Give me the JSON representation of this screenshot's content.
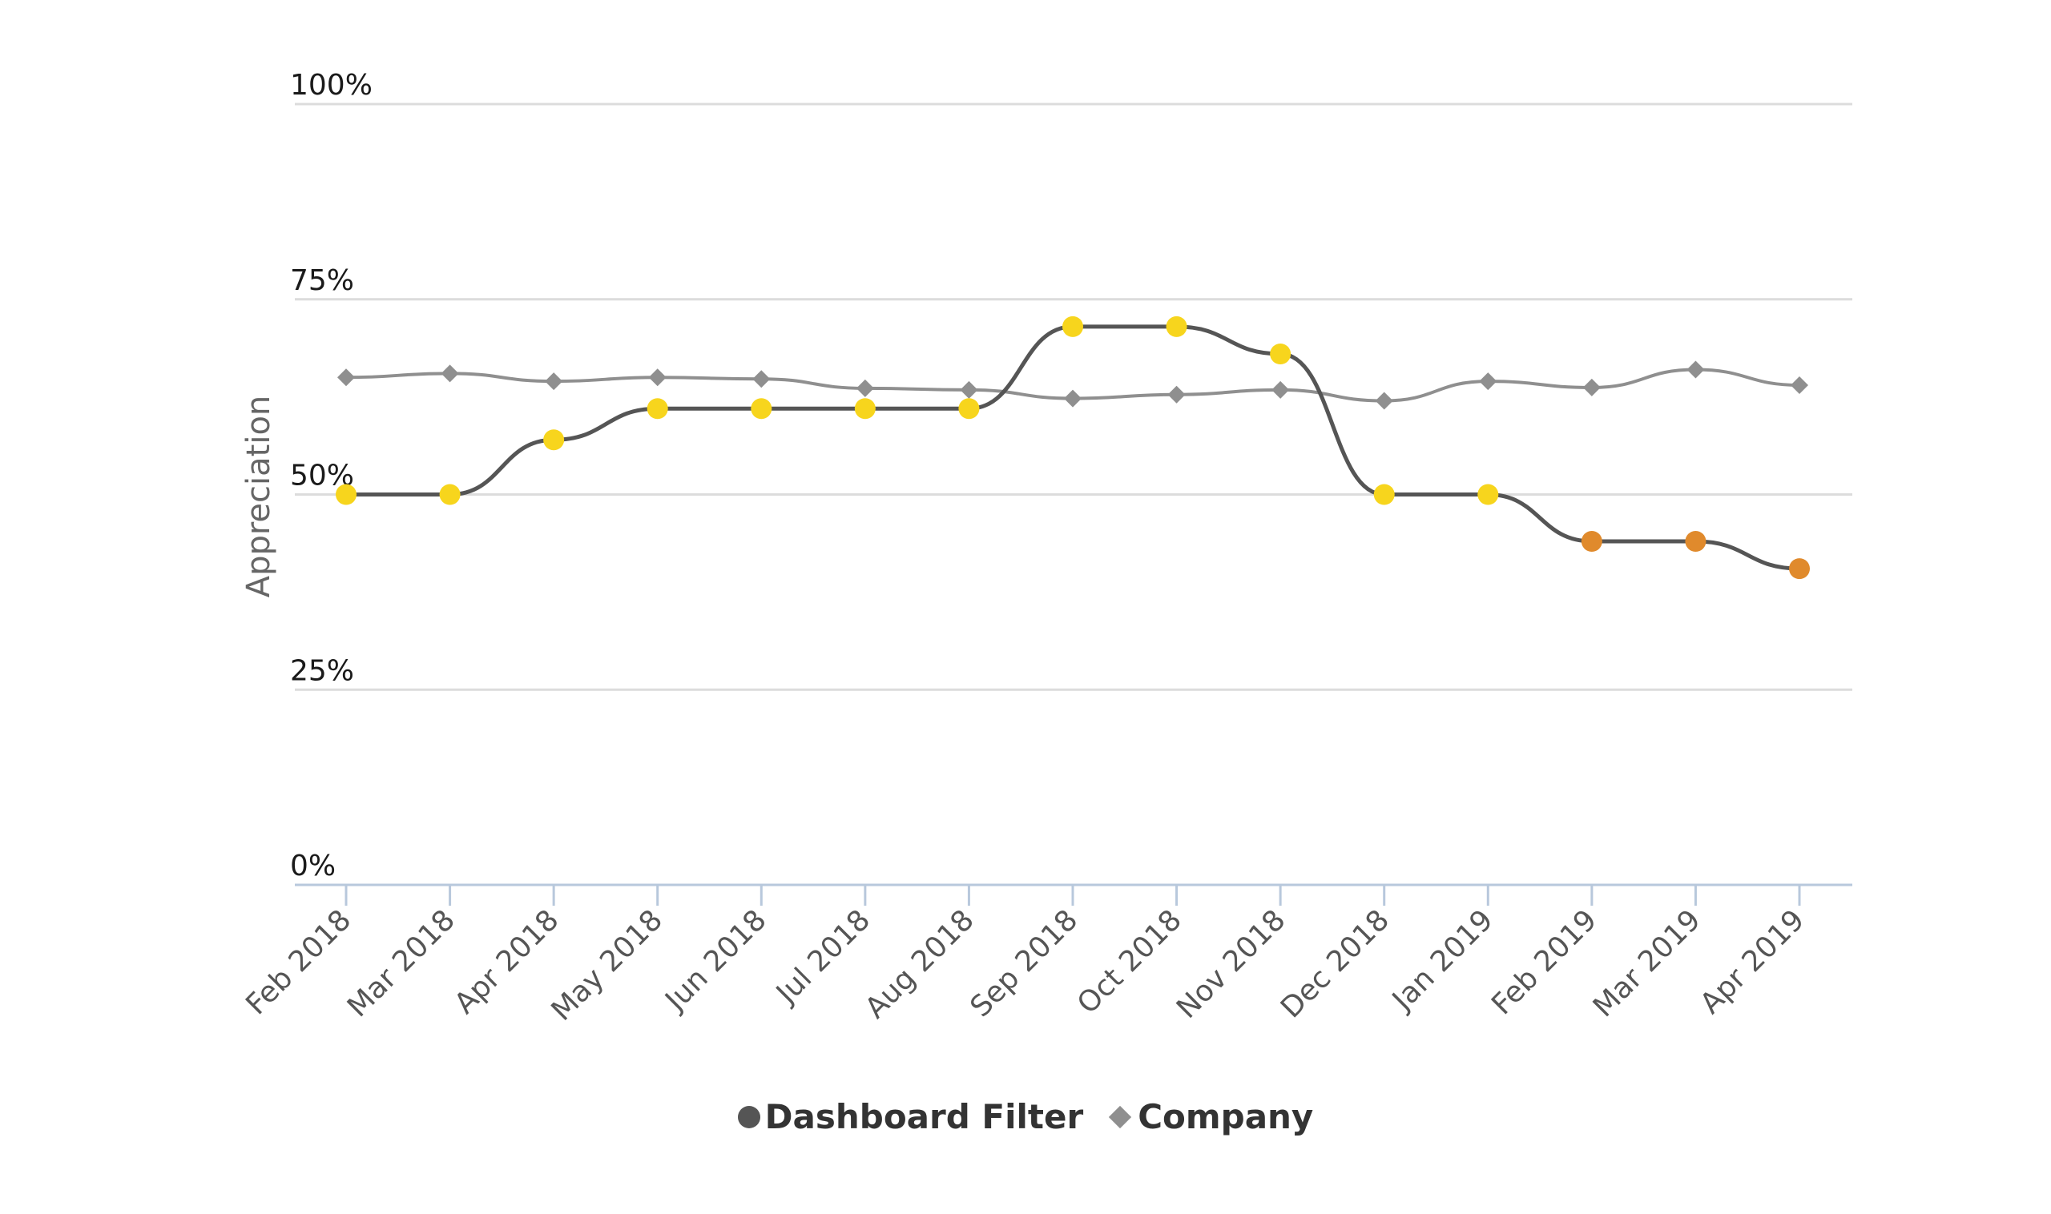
{
  "chart_data": {
    "type": "line",
    "ylabel": "Appreciation",
    "ylim": [
      0,
      100
    ],
    "y_ticks": [
      "0%",
      "25%",
      "50%",
      "75%",
      "100%"
    ],
    "y_tick_values": [
      0,
      25,
      50,
      75,
      100
    ],
    "categories": [
      "Feb 2018",
      "Mar 2018",
      "Apr 2018",
      "May 2018",
      "Jun 2018",
      "Jul 2018",
      "Aug 2018",
      "Sep 2018",
      "Oct 2018",
      "Nov 2018",
      "Dec 2018",
      "Jan 2019",
      "Feb 2019",
      "Mar 2019",
      "Apr 2019"
    ],
    "grid": true,
    "legend": "bottom",
    "series": [
      {
        "name": "Dashboard Filter",
        "marker": "circle",
        "line_color": "#555555",
        "values": [
          50,
          50,
          57,
          61,
          61,
          61,
          61,
          71.5,
          71.5,
          68,
          50,
          50,
          44,
          44,
          40.5
        ],
        "point_colors": [
          "#f7d51d",
          "#f7d51d",
          "#f7d51d",
          "#f7d51d",
          "#f7d51d",
          "#f7d51d",
          "#f7d51d",
          "#f7d51d",
          "#f7d51d",
          "#f7d51d",
          "#f7d51d",
          "#f7d51d",
          "#e08a2c",
          "#e08a2c",
          "#e08a2c"
        ]
      },
      {
        "name": "Company",
        "marker": "diamond",
        "line_color": "#8f8f8f",
        "values": [
          65,
          65.5,
          64.5,
          65,
          64.8,
          63.6,
          63.4,
          62.3,
          62.8,
          63.4,
          62,
          64.5,
          63.7,
          66,
          64
        ]
      }
    ]
  }
}
